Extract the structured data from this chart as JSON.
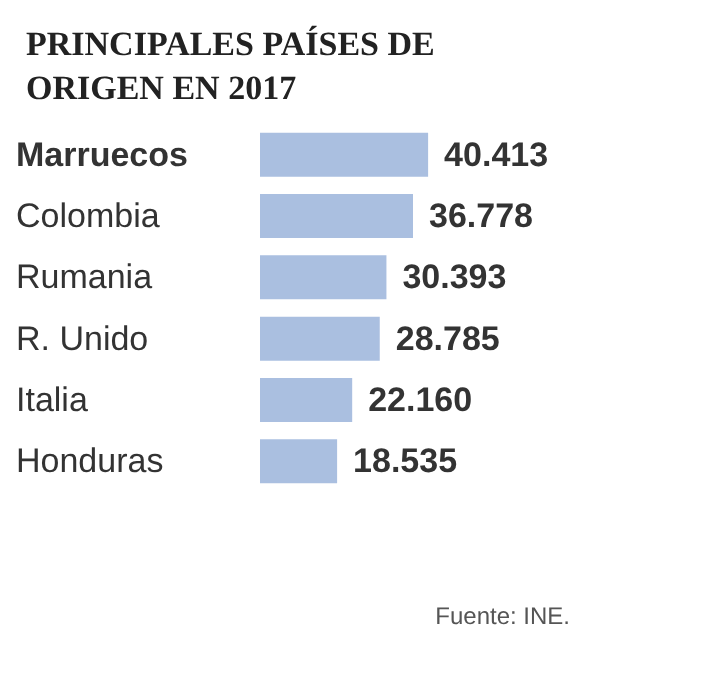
{
  "chart_data": {
    "type": "bar",
    "orientation": "horizontal",
    "title": "PRINCIPALES PAÍSES DE ORIGEN EN 2017",
    "categories": [
      "Marruecos",
      "Colombia",
      "Rumania",
      "R. Unido",
      "Italia",
      "Honduras"
    ],
    "values": [
      40413,
      36778,
      30393,
      28785,
      22160,
      18535
    ],
    "value_labels": [
      "40.413",
      "36.778",
      "30.393",
      "28.785",
      "22.160",
      "18.535"
    ],
    "color": "#aabfe0",
    "annotations": [
      "Fuente: INE."
    ]
  }
}
